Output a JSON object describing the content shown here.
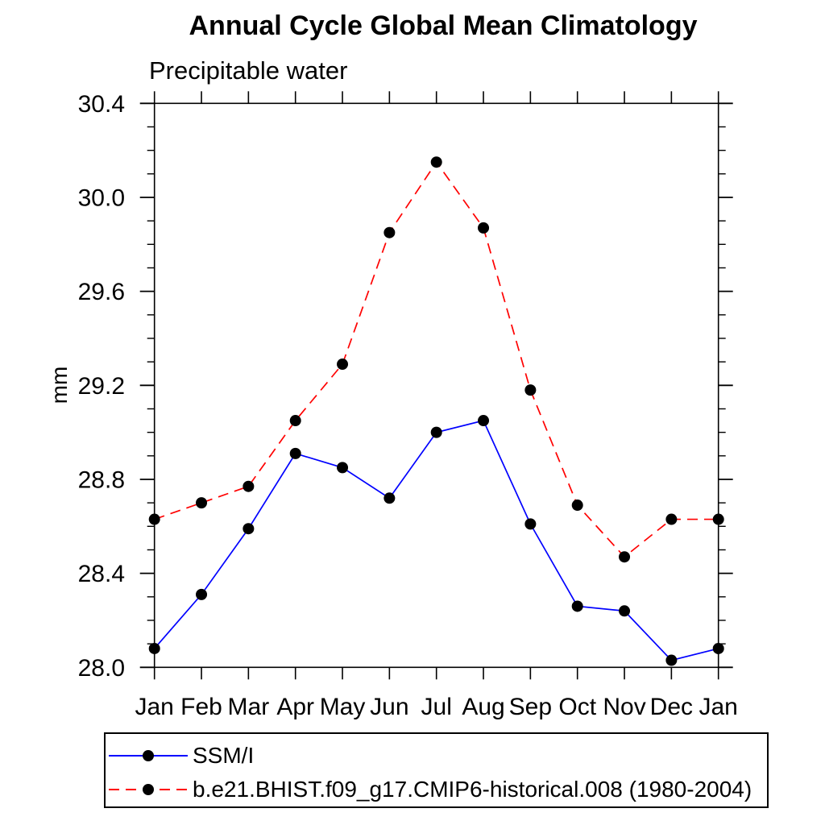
{
  "chart_data": {
    "type": "line",
    "title": "Annual Cycle Global Mean Climatology",
    "subtitle": "Precipitable water",
    "ylabel": "mm",
    "x_categories": [
      "Jan",
      "Feb",
      "Mar",
      "Apr",
      "May",
      "Jun",
      "Jul",
      "Aug",
      "Sep",
      "Oct",
      "Nov",
      "Dec",
      "Jan"
    ],
    "ylim": [
      28.0,
      30.4
    ],
    "ytick_major_step": 0.4,
    "ytick_minor_step": 0.1,
    "grid": false,
    "legend_position": "bottom-left",
    "marker": "filled-black-circle",
    "series": [
      {
        "name": "SSM/I",
        "color": "#0000ff",
        "line_style": "solid",
        "values": [
          28.08,
          28.31,
          28.59,
          28.91,
          28.85,
          28.72,
          29.0,
          29.05,
          28.61,
          28.26,
          28.24,
          28.03,
          28.08
        ]
      },
      {
        "name": "b.e21.BHIST.f09_g17.CMIP6-historical.008 (1980-2004)",
        "color": "#ff0000",
        "line_style": "dashed",
        "values": [
          28.63,
          28.7,
          28.77,
          29.05,
          29.29,
          29.85,
          30.15,
          29.87,
          29.18,
          28.69,
          28.47,
          28.63,
          28.63
        ]
      }
    ]
  }
}
